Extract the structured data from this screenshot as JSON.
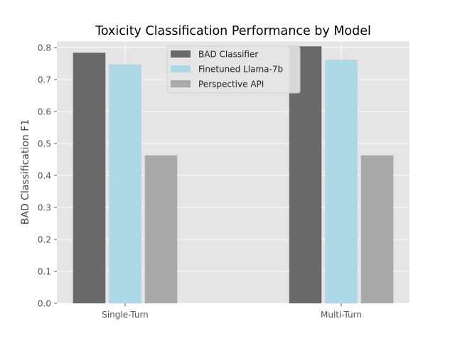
{
  "chart_data": {
    "type": "bar",
    "title": "Toxicity Classification Performance by Model",
    "xlabel": "",
    "ylabel": "BAD Classification F1",
    "categories": [
      "Single-Turn",
      "Multi-Turn"
    ],
    "series": [
      {
        "name": "BAD Classifier",
        "color": "#696969",
        "values": [
          0.784,
          0.804
        ]
      },
      {
        "name": "Finetuned Llama-7b",
        "color": "#add8e6",
        "values": [
          0.747,
          0.762
        ]
      },
      {
        "name": "Perspective API",
        "color": "#a9a9a9",
        "values": [
          0.463,
          0.463
        ]
      }
    ],
    "ylim": [
      0,
      0.82
    ],
    "yticks": [
      0.0,
      0.1,
      0.2,
      0.3,
      0.4,
      0.5,
      0.6,
      0.7,
      0.8
    ],
    "ytick_labels": [
      "0.0",
      "0.1",
      "0.2",
      "0.3",
      "0.4",
      "0.5",
      "0.6",
      "0.7",
      "0.8"
    ],
    "grid": true,
    "legend_position": "top-center"
  }
}
